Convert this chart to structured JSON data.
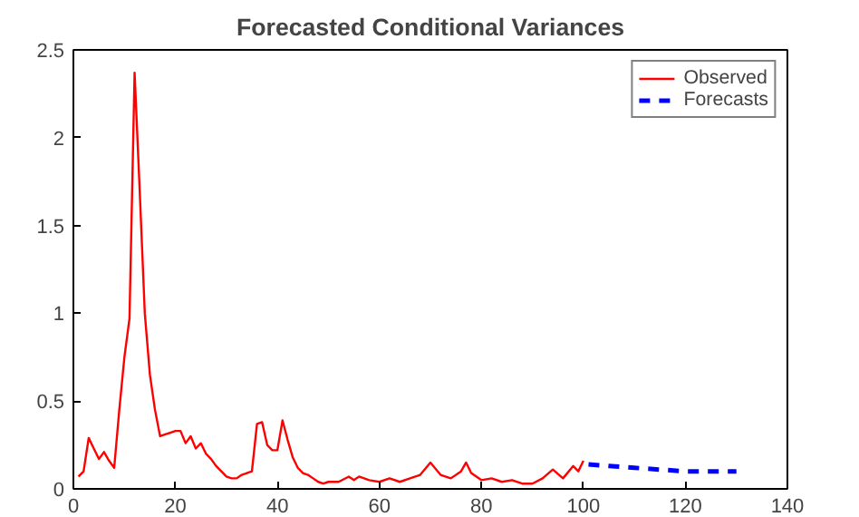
{
  "chart_data": {
    "type": "line",
    "title": "Forecasted Conditional Variances",
    "xlim": [
      0,
      140
    ],
    "xticks": [
      0,
      20,
      40,
      60,
      80,
      100,
      120,
      140
    ],
    "ylim": [
      0,
      2.5
    ],
    "yticks": [
      0,
      0.5,
      1,
      1.5,
      2,
      2.5
    ],
    "grid": false,
    "legend": "top right",
    "line_style": "solid",
    "marker": "none",
    "series": [
      {
        "name": "Observed",
        "color": "#ff0000",
        "x": [
          1,
          2,
          3,
          4,
          5,
          6,
          7,
          8,
          9,
          10,
          11,
          12,
          13,
          14,
          15,
          16,
          17,
          18,
          19,
          20,
          21,
          22,
          23,
          24,
          25,
          26,
          27,
          28,
          29,
          30,
          31,
          32,
          33,
          34,
          35,
          36,
          37,
          38,
          39,
          40,
          41,
          42,
          43,
          44,
          45,
          46,
          47,
          48,
          49,
          50,
          52,
          54,
          55,
          56,
          58,
          60,
          62,
          64,
          66,
          68,
          70,
          72,
          74,
          76,
          77,
          78,
          80,
          82,
          84,
          86,
          88,
          90,
          92,
          94,
          96,
          98,
          99,
          100
        ],
        "values": [
          0.07,
          0.1,
          0.29,
          0.23,
          0.17,
          0.21,
          0.16,
          0.12,
          0.45,
          0.75,
          0.97,
          2.37,
          1.7,
          1.0,
          0.65,
          0.45,
          0.3,
          0.31,
          0.32,
          0.33,
          0.33,
          0.26,
          0.3,
          0.23,
          0.26,
          0.2,
          0.17,
          0.13,
          0.1,
          0.07,
          0.06,
          0.06,
          0.08,
          0.09,
          0.1,
          0.37,
          0.38,
          0.25,
          0.22,
          0.22,
          0.39,
          0.28,
          0.18,
          0.12,
          0.09,
          0.08,
          0.06,
          0.04,
          0.03,
          0.04,
          0.04,
          0.07,
          0.05,
          0.07,
          0.05,
          0.04,
          0.06,
          0.04,
          0.06,
          0.08,
          0.15,
          0.08,
          0.06,
          0.1,
          0.15,
          0.09,
          0.05,
          0.06,
          0.04,
          0.05,
          0.03,
          0.03,
          0.06,
          0.11,
          0.06,
          0.13,
          0.1,
          0.16
        ]
      },
      {
        "name": "Forecasts",
        "color": "#0000ff",
        "line_style": "dashed",
        "x": [
          101,
          105,
          110,
          115,
          120,
          125,
          130
        ],
        "values": [
          0.14,
          0.13,
          0.12,
          0.11,
          0.1,
          0.1,
          0.1
        ]
      }
    ]
  }
}
